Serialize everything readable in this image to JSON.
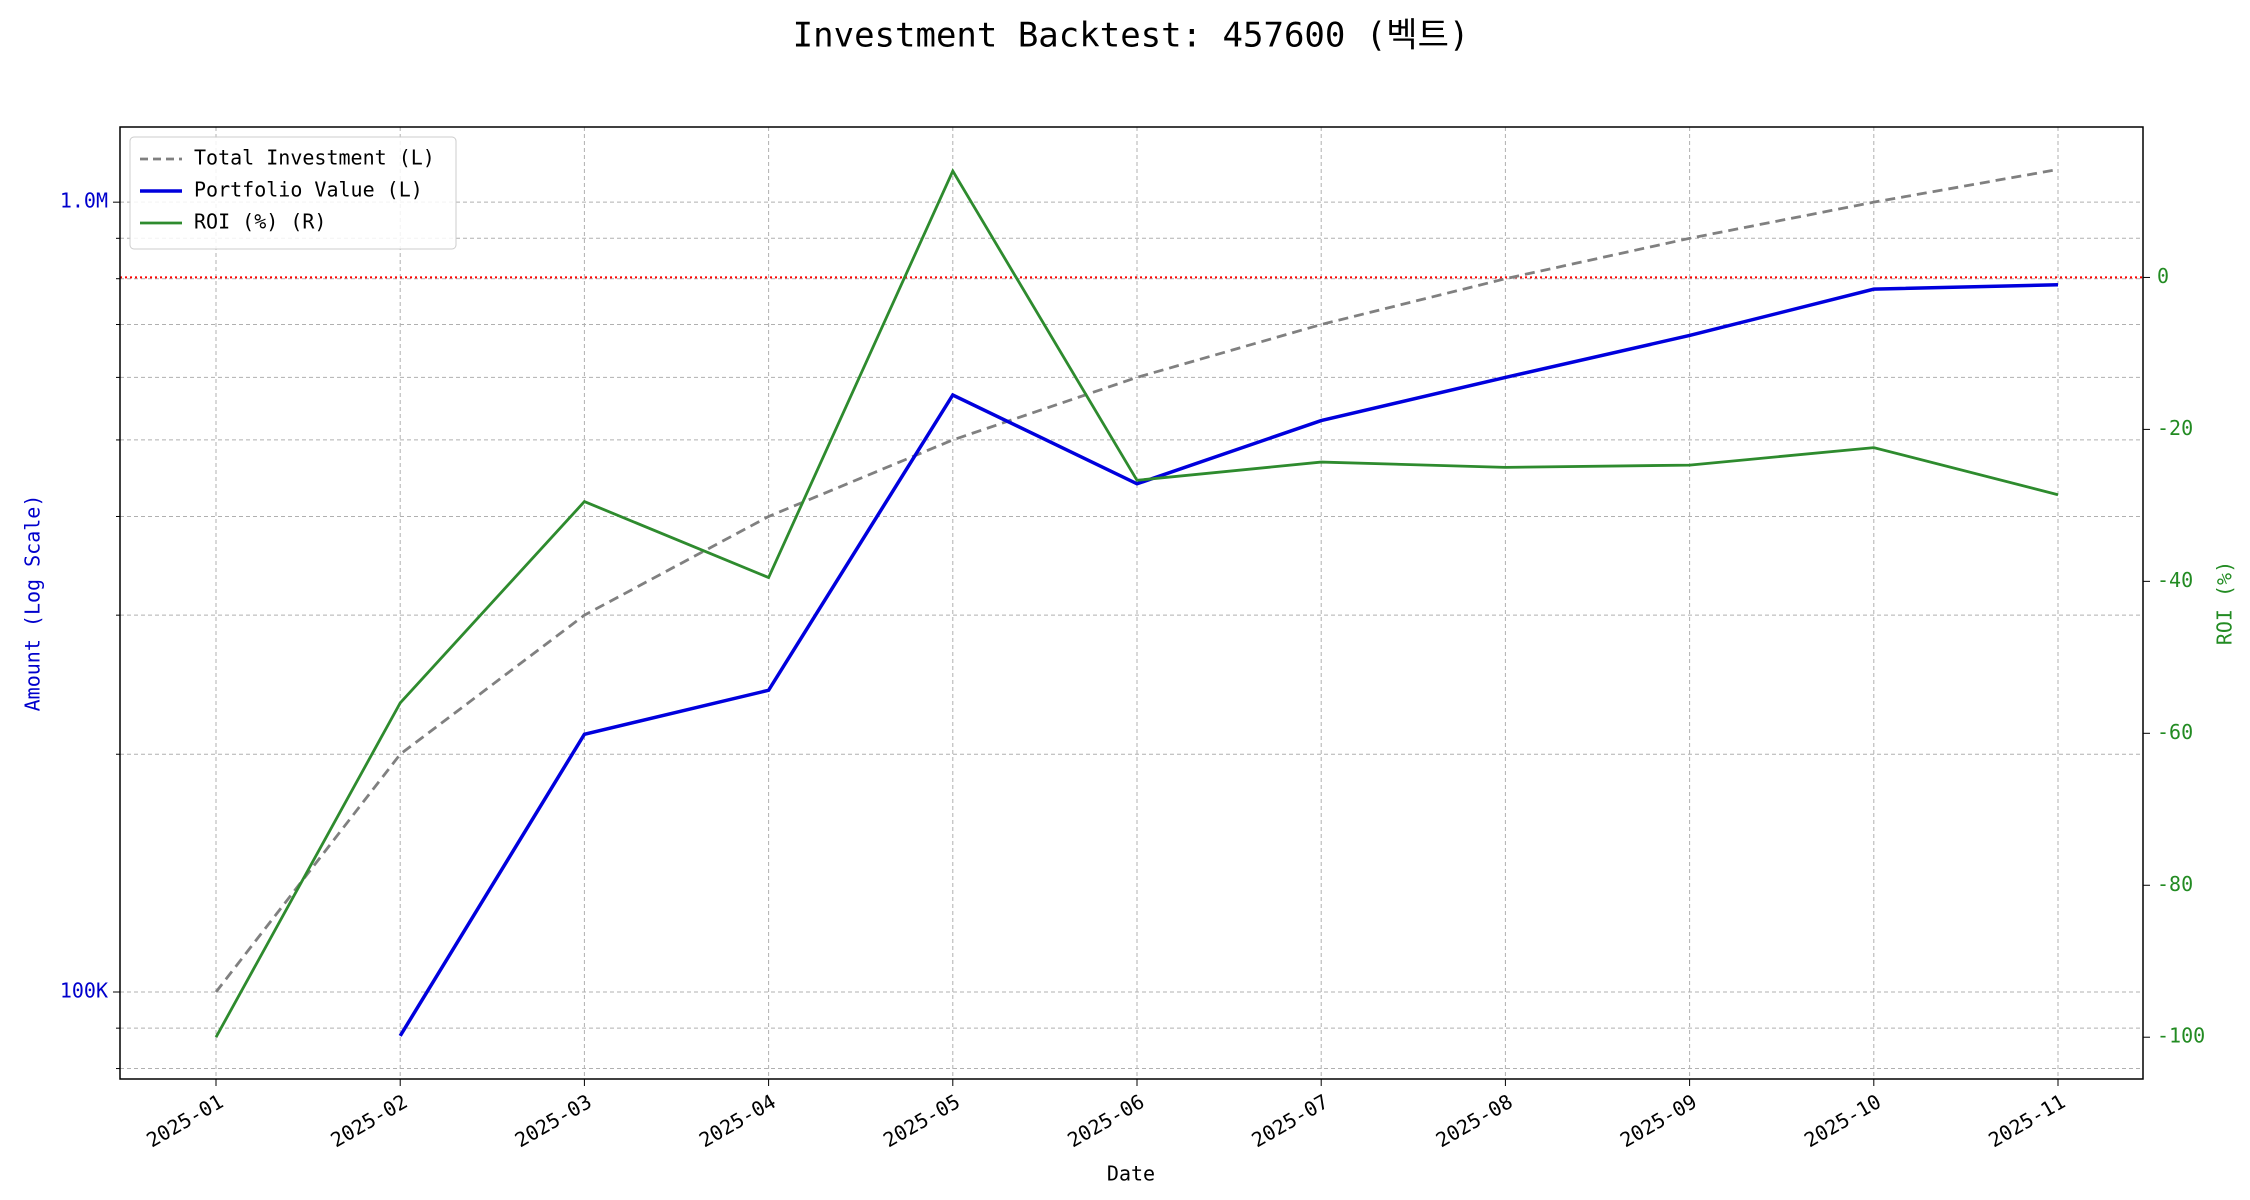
{
  "chart_data": {
    "type": "line",
    "title": "Investment Backtest: 457600 (벡트)",
    "x_label": "Date",
    "y_label": "Amount (Log Scale)",
    "y2_label": "ROI (%)",
    "x": [
      "2025-01",
      "2025-02",
      "2025-03",
      "2025-04",
      "2025-05",
      "2025-06",
      "2025-07",
      "2025-08",
      "2025-09",
      "2025-10",
      "2025-11"
    ],
    "series": [
      {
        "name": "Total Investment (L)",
        "color": "#808080",
        "dash": true,
        "axis": "y",
        "values": [
          100000,
          200000,
          300000,
          400000,
          500000,
          600000,
          700000,
          800000,
          900000,
          1000000,
          1100000
        ]
      },
      {
        "name": "Portfolio Value (L)",
        "color": "#0000dd",
        "axis": "y",
        "values": [
          null,
          88000,
          212000,
          241000,
          570000,
          440000,
          529000,
          600000,
          678000,
          776000,
          786000
        ]
      },
      {
        "name": "ROI (%) (R)",
        "color": "#2e8b2e",
        "axis": "y2",
        "values": [
          -100,
          -56,
          -29.5,
          -39.5,
          14,
          -26.7,
          -24.3,
          -25,
          -24.7,
          -22.4,
          -28.6
        ]
      }
    ],
    "y_log": true,
    "ylim": [
      77600,
      1245000
    ],
    "yticks": [
      {
        "value": 100000,
        "label": "100K"
      },
      {
        "value": 1000000,
        "label": "1.0M"
      }
    ],
    "y2lim": [
      -105.5,
      19.8
    ],
    "y2ticks": [
      -100,
      -80,
      -60,
      -40,
      -20,
      0
    ],
    "hline": {
      "axis": "y2",
      "value": 0,
      "color": "#ff0000"
    },
    "grid": true,
    "legend": "upper-left",
    "y_color": "#0000cc",
    "y2_color": "#228b22"
  }
}
